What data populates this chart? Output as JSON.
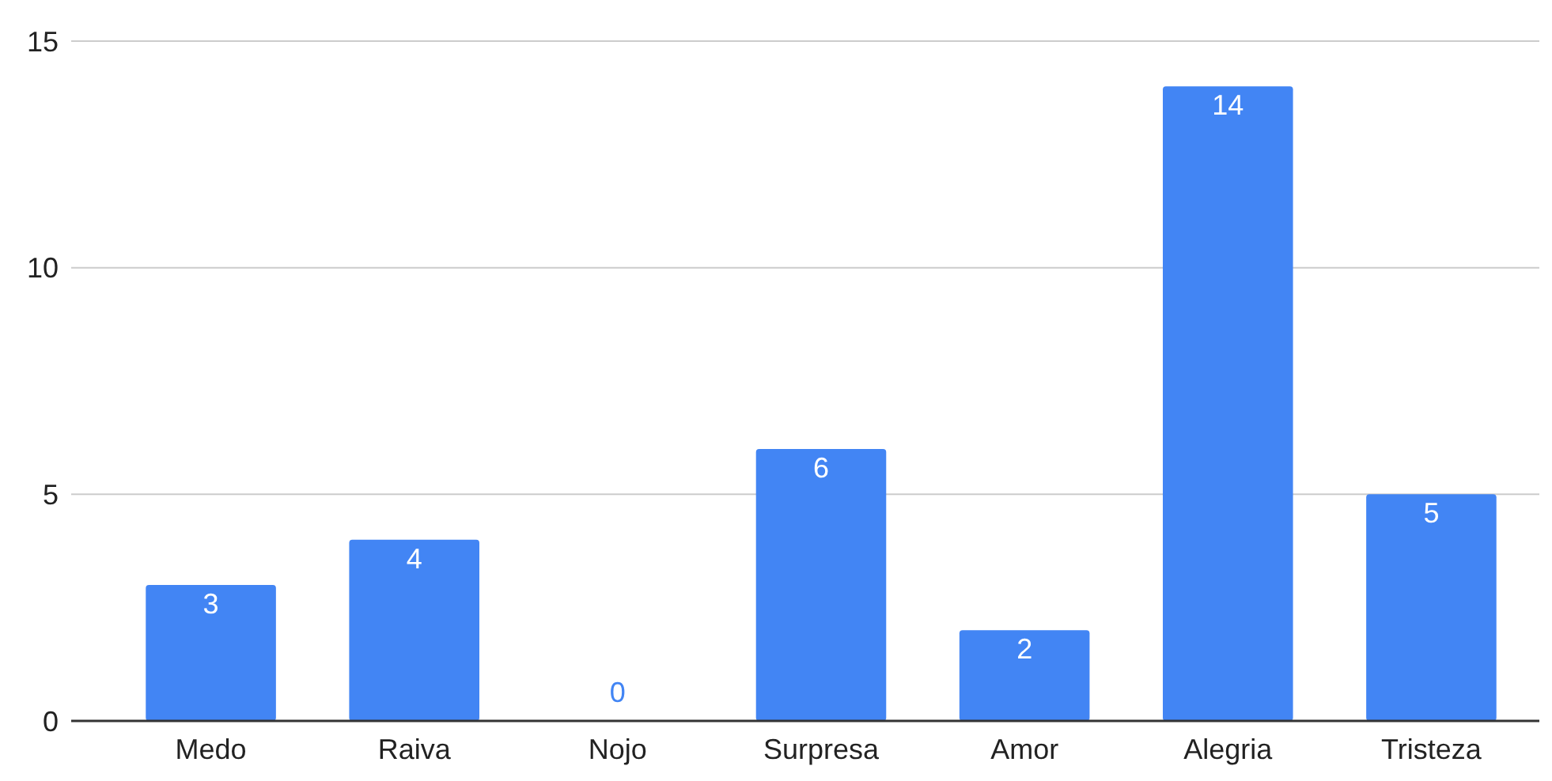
{
  "chart_data": {
    "type": "bar",
    "categories": [
      "Medo",
      "Raiva",
      "Nojo",
      "Surpresa",
      "Amor",
      "Alegria",
      "Tristeza"
    ],
    "values": [
      3,
      4,
      0,
      6,
      2,
      14,
      5
    ],
    "color": "#4285f4",
    "ylim": [
      0,
      15
    ],
    "yticks": [
      0,
      5,
      10,
      15
    ],
    "grid": "y",
    "data_labels": true
  }
}
